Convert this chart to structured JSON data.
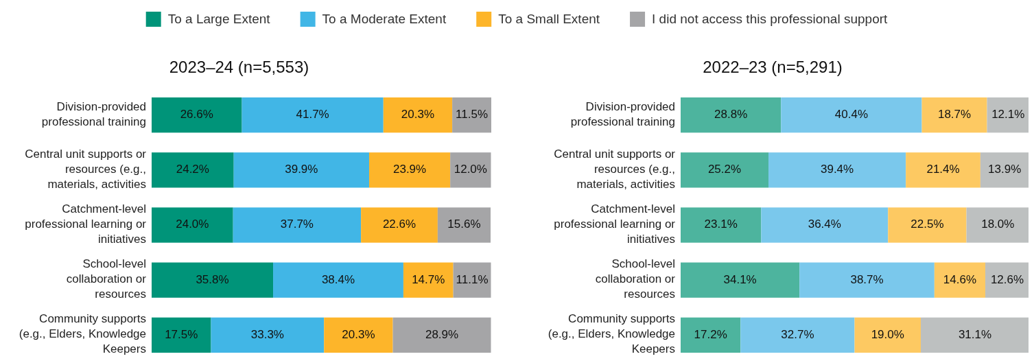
{
  "chart_data": [
    {
      "type": "bar",
      "orientation": "horizontal",
      "stacked": true,
      "title": "2023–24 (n=5,553)",
      "legend": "top",
      "categories": [
        "Division-provided professional training",
        "Central unit supports or resources (e.g., materials, activities",
        "Catchment-level professional learning or initiatives",
        "School-level collaboration or resources",
        "Community supports (e.g., Elders, Knowledge Keepers"
      ],
      "series": [
        {
          "name": "To a Large Extent",
          "color": "#009479",
          "values": [
            26.6,
            24.2,
            24.0,
            35.8,
            17.5
          ],
          "value_labels": [
            "26.6%",
            "24.2%",
            "24.0%",
            "35.8%",
            "17.5%"
          ]
        },
        {
          "name": "To a Moderate Extent",
          "color": "#41b6e6",
          "values": [
            41.7,
            39.9,
            37.7,
            38.4,
            33.3
          ],
          "value_labels": [
            "41.7%",
            "39.9%",
            "37.7%",
            "38.4%",
            "33.3%"
          ]
        },
        {
          "name": "To a Small Extent",
          "color": "#fdb52a",
          "values": [
            20.3,
            23.9,
            22.6,
            14.7,
            20.3
          ],
          "value_labels": [
            "20.3%",
            "23.9%",
            "22.6%",
            "14.7%",
            "20.3%"
          ]
        },
        {
          "name": "I did not access this professional support",
          "color": "#a5a5a7",
          "values": [
            11.5,
            12.0,
            15.6,
            11.1,
            28.9
          ],
          "value_labels": [
            "11.5%",
            "12.0%",
            "15.6%",
            "11.1%",
            "28.9%"
          ]
        }
      ]
    },
    {
      "type": "bar",
      "orientation": "horizontal",
      "stacked": true,
      "title": "2022–23 (n=5,291)",
      "categories": [
        "Division-provided professional training",
        "Central unit supports or resources (e.g., materials, activities",
        "Catchment-level professional learning or initiatives",
        "School-level collaboration or resources",
        "Community supports (e.g., Elders, Knowledge Keepers"
      ],
      "series": [
        {
          "color": "#4db49e",
          "values": [
            28.8,
            25.2,
            23.1,
            34.1,
            17.2
          ],
          "value_labels": [
            "28.8%",
            "25.2%",
            "23.1%",
            "34.1%",
            "17.2%"
          ]
        },
        {
          "color": "#7ac8ec",
          "values": [
            40.4,
            39.4,
            36.4,
            38.7,
            32.7
          ],
          "value_labels": [
            "40.4%",
            "39.4%",
            "36.4%",
            "38.7%",
            "32.7%"
          ]
        },
        {
          "color": "#fdc962",
          "values": [
            18.7,
            21.4,
            22.5,
            14.6,
            19.0
          ],
          "value_labels": [
            "18.7%",
            "21.4%",
            "22.5%",
            "14.6%",
            "19.0%"
          ]
        },
        {
          "color": "#bdc0c0",
          "values": [
            12.1,
            13.9,
            18.0,
            12.6,
            31.1
          ],
          "value_labels": [
            "12.1%",
            "13.9%",
            "18.0%",
            "12.6%",
            "31.1%"
          ]
        }
      ]
    }
  ]
}
